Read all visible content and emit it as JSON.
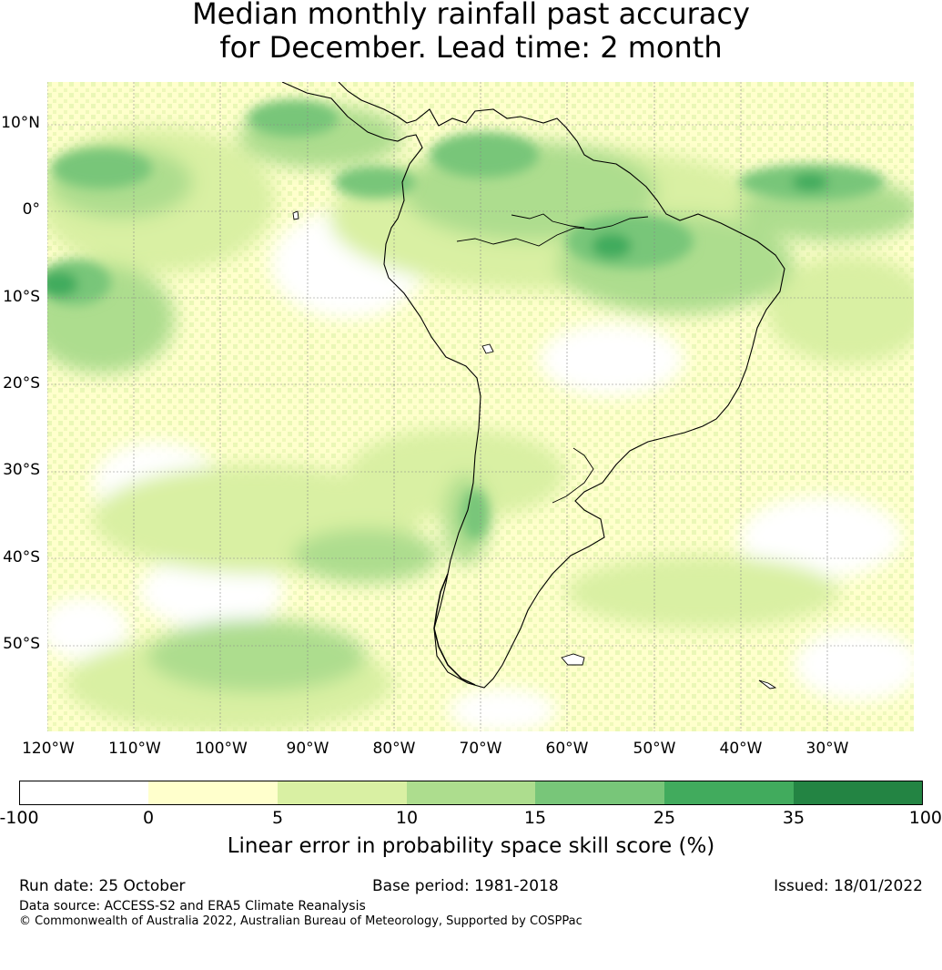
{
  "title": {
    "line1": "Median monthly rainfall past accuracy",
    "line2": "for December. Lead time: 2 month"
  },
  "map": {
    "lat_labels": [
      "10°N",
      "0°",
      "10°S",
      "20°S",
      "30°S",
      "40°S",
      "50°S"
    ],
    "lon_labels": [
      "120°W",
      "110°W",
      "100°W",
      "90°W",
      "80°W",
      "70°W",
      "60°W",
      "50°W",
      "40°W",
      "30°W"
    ]
  },
  "colorbar": {
    "label": "Linear error in probability space skill score (%)",
    "ticks": [
      "-100",
      "0",
      "5",
      "10",
      "15",
      "25",
      "35",
      "100"
    ],
    "colors": [
      "#ffffff",
      "#ffffcc",
      "#d9f0a3",
      "#addd8e",
      "#78c679",
      "#41ab5d",
      "#238443"
    ]
  },
  "footer": {
    "run_date": "Run date: 25 October",
    "base_period": "Base period: 1981-2018",
    "issued": "Issued: 18/01/2022",
    "data_source": "Data source: ACCESS-S2 and ERA5 Climate Reanalysis",
    "copyright": "© Commonwealth of Australia 2022, Australian Bureau of Meteorology, Supported by COSPPac"
  }
}
